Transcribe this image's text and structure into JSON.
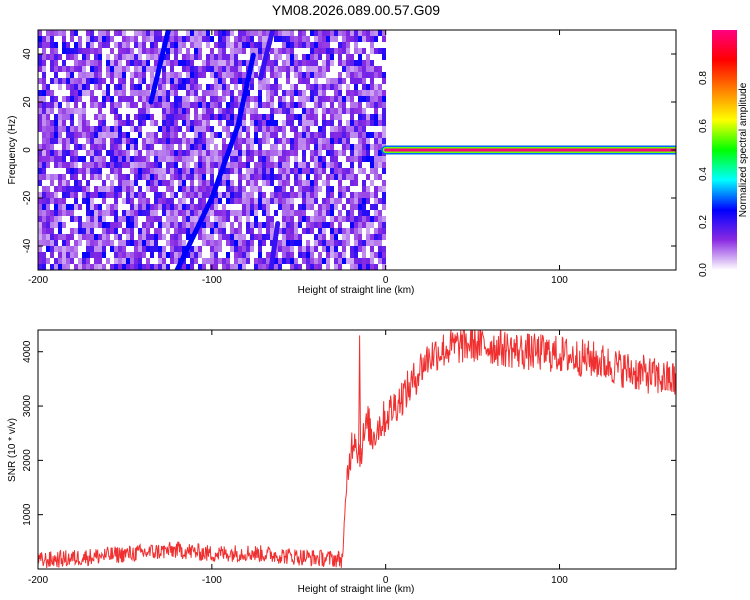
{
  "title": "YM08.2026.089.00.57.G09",
  "chart_data": [
    {
      "type": "heatmap",
      "xlabel": "Height of straight line (km)",
      "ylabel": "Frequency (Hz)",
      "xlim": [
        -200,
        167
      ],
      "ylim": [
        -50,
        50
      ],
      "x_ticks": [
        -200,
        -100,
        0,
        100
      ],
      "y_ticks": [
        -40,
        -20,
        0,
        20,
        40
      ],
      "grid": false,
      "colorbar": {
        "label": "Normalized spectral amplitude",
        "range": [
          0,
          1
        ],
        "ticks": [
          0.0,
          0.2,
          0.4,
          0.6,
          0.8
        ],
        "colors": [
          "#ffffff",
          "#8a2be2",
          "#0000ff",
          "#00ffff",
          "#00ff00",
          "#ffff00",
          "#ff8000",
          "#ff0000",
          "#ff0080"
        ]
      },
      "noise_region": {
        "x": [
          -200,
          0
        ],
        "level": [
          0.05,
          0.25
        ]
      },
      "tracks": [
        {
          "name": "",
          "points": [
            [
              -120,
              -50
            ],
            [
              -100,
              -20
            ],
            [
              -85,
              10
            ],
            [
              -76,
              40
            ]
          ],
          "amplitude": 0.25
        },
        {
          "name": "",
          "points": [
            [
              -135,
              20
            ],
            [
              -125,
              50
            ]
          ],
          "amplitude": 0.25
        },
        {
          "name": "",
          "points": [
            [
              -66,
              -50
            ],
            [
              -62,
              -30
            ]
          ],
          "amplitude": 0.2
        },
        {
          "name": "",
          "points": [
            [
              -72,
              30
            ],
            [
              -65,
              50
            ]
          ],
          "amplitude": 0.2
        },
        {
          "name": "",
          "points": [
            [
              0,
              0
            ],
            [
              167,
              0
            ]
          ],
          "amplitude": 1.0
        }
      ]
    },
    {
      "type": "line",
      "xlabel": "Height of straight line (km)",
      "ylabel": "SNR (10 * v/v)",
      "xlim": [
        -200,
        167
      ],
      "ylim": [
        0,
        4400
      ],
      "x_ticks": [
        -200,
        -100,
        0,
        100
      ],
      "y_ticks": [
        1000,
        2000,
        3000,
        4000
      ],
      "grid": false,
      "series": [
        {
          "name": "",
          "color": "#f03030",
          "x": [
            -200,
            -180,
            -160,
            -140,
            -120,
            -100,
            -80,
            -60,
            -40,
            -25,
            -22,
            -20,
            -18,
            -15,
            -12,
            -10,
            -8,
            -5,
            0,
            5,
            10,
            15,
            20,
            25,
            30,
            40,
            50,
            60,
            70,
            80,
            90,
            100,
            110,
            120,
            130,
            140,
            150,
            160,
            167
          ],
          "values": [
            150,
            200,
            250,
            300,
            350,
            280,
            300,
            250,
            200,
            180,
            1700,
            2200,
            2500,
            2100,
            2500,
            2700,
            2400,
            2600,
            2800,
            3000,
            3200,
            3400,
            3700,
            3900,
            4000,
            4100,
            4150,
            4100,
            4050,
            4000,
            3980,
            3950,
            3900,
            3850,
            3750,
            3650,
            3580,
            3500,
            3480
          ],
          "noise_amplitude": 160,
          "spikes": [
            {
              "x": -15,
              "y": 4300
            }
          ]
        }
      ]
    }
  ]
}
